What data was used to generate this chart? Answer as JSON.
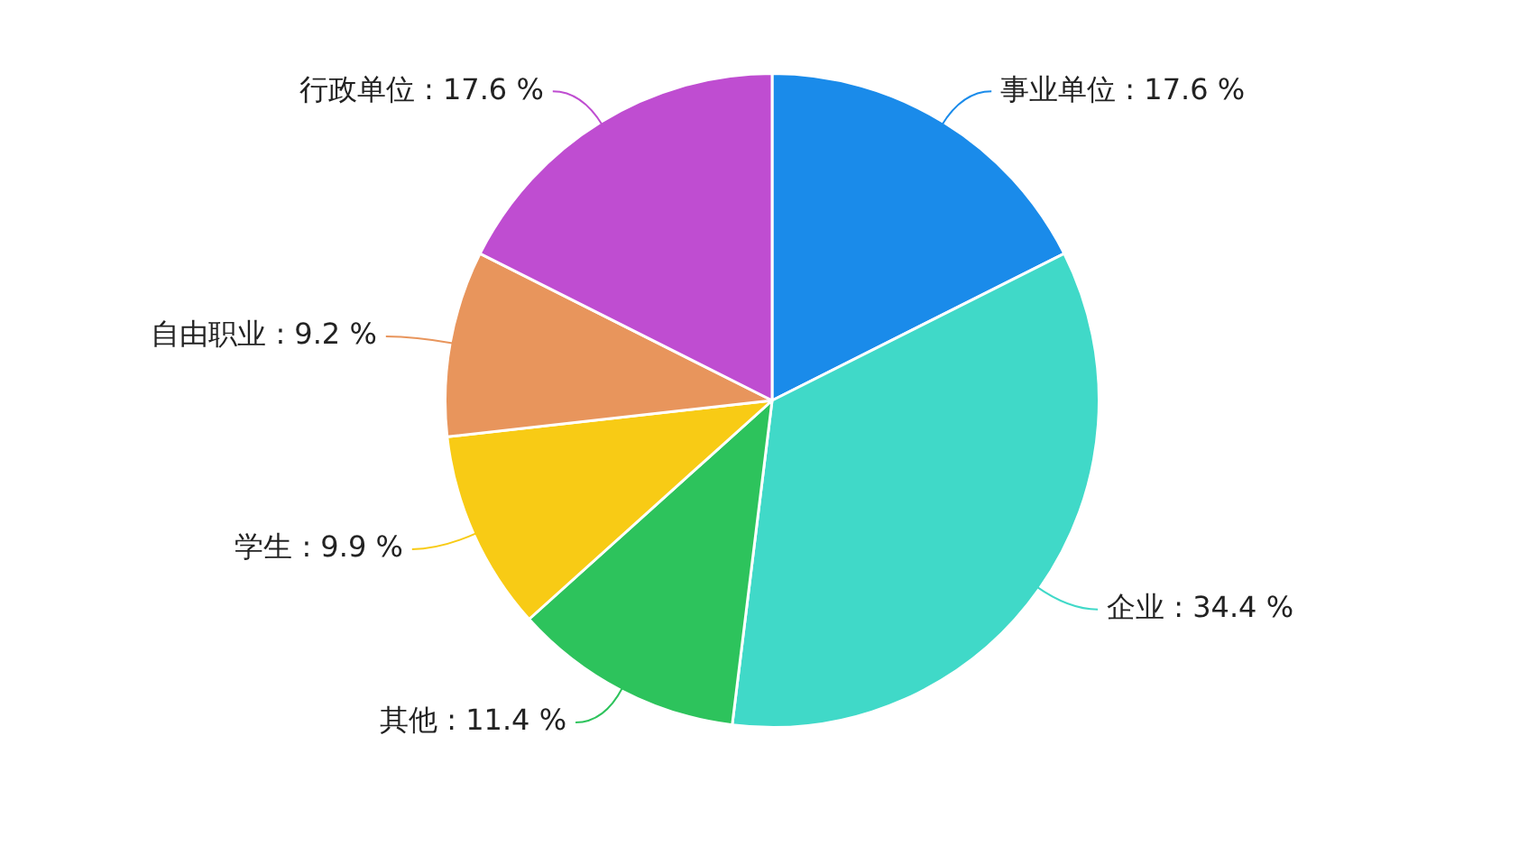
{
  "chart_data": {
    "type": "pie",
    "categories": [
      "事业单位",
      "企业",
      "其他",
      "学生",
      "自由职业",
      "行政单位"
    ],
    "values": [
      17.6,
      34.4,
      11.4,
      9.9,
      9.2,
      17.6
    ],
    "value_labels": [
      "17.6 %",
      "34.4 %",
      "11.4 %",
      "9.9 %",
      "9.2 %",
      "17.6 %"
    ],
    "colors": [
      "#1a8bea",
      "#40d9c8",
      "#2dc35c",
      "#f8cb15",
      "#e8955c",
      "#bf4dd1"
    ]
  }
}
